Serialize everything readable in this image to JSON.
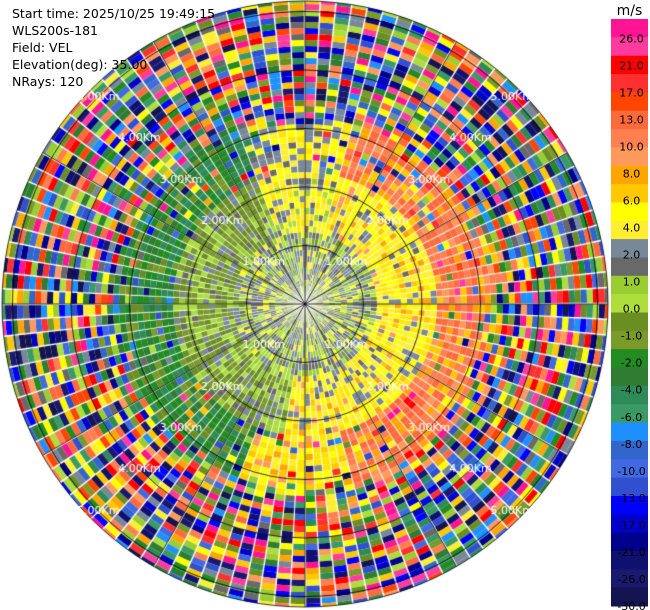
{
  "header": {
    "start_time": "Start time: 2025/10/25 19:49:15",
    "site": "WLS200s-181",
    "field": "Field: VEL",
    "elevation": "Elevation(deg): 35.00",
    "nrays": "NRays: 120"
  },
  "chart_data": {
    "type": "heatmap",
    "subtype": "ppi-radial-velocity",
    "n_rays": 120,
    "range_rings_km": [
      1,
      2,
      3,
      4,
      5
    ],
    "ring_labels": [
      "1.00Km",
      "2.00Km",
      "3.00Km",
      "4.00Km",
      "5.00Km"
    ],
    "colorbar": {
      "unit": "m/s",
      "ticks": [
        "26.0",
        "21.0",
        "17.0",
        "13.0",
        "10.0",
        "8.0",
        "6.0",
        "4.0",
        "2.0",
        "1.0",
        "0.0",
        "-1.0",
        "-2.0",
        "-4.0",
        "-6.0",
        "-8.0",
        "-10.0",
        "-13.0",
        "-17.0",
        "-21.0",
        "-26.0",
        "-30.0"
      ],
      "colors": [
        "#ff1493",
        "#ff3c9e",
        "#ff0000",
        "#ff3030",
        "#ff4500",
        "#ff6a3c",
        "#ff7f50",
        "#ff9a5c",
        "#ffa500",
        "#ffc800",
        "#ffff00",
        "#ffef30",
        "#778899",
        "#696969",
        "#9acd32",
        "#adde3c",
        "#6b8e23",
        "#7a9a2a",
        "#228b22",
        "#2e7d32",
        "#2e8b57",
        "#3a9a66",
        "#1e90ff",
        "#3366cc",
        "#4169e1",
        "#3050d0",
        "#0000ff",
        "#0000cc",
        "#00008b",
        "#101070",
        "#191970",
        "#141450"
      ]
    }
  }
}
